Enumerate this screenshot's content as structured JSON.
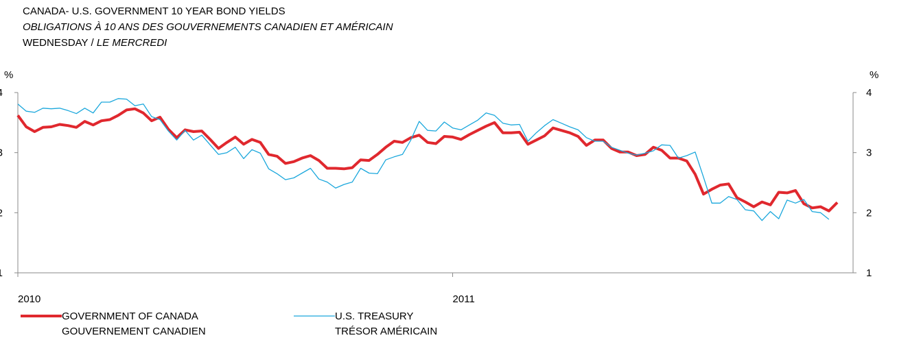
{
  "chart_data": {
    "type": "line",
    "title": "CANADA- U.S. GOVERNMENT 10 YEAR BOND YIELDS",
    "subtitle": "OBLIGATIONS À 10 ANS DES GOUVERNEMENTS CANADIEN ET AMÉRICAIN",
    "day_label": "WEDNESDAY /",
    "day_label_fr": "LE MERCREDI",
    "y_label": "%",
    "y2_label": "%",
    "categories": [
      "2010",
      null,
      null,
      null,
      null,
      null,
      null,
      null,
      null,
      null,
      null,
      null,
      null,
      null,
      null,
      null,
      null,
      null,
      null,
      null,
      null,
      null,
      null,
      null,
      null,
      null,
      null,
      null,
      null,
      null,
      null,
      null,
      null,
      null,
      null,
      null,
      null,
      null,
      null,
      null,
      null,
      null,
      null,
      null,
      null,
      null,
      null,
      null,
      null,
      null,
      null,
      null,
      "2011",
      null,
      null,
      null,
      null,
      null,
      null,
      null,
      null,
      null,
      null,
      null,
      null,
      null,
      null,
      null,
      null,
      null,
      null,
      null,
      null,
      null,
      null,
      null,
      null,
      null,
      null,
      null,
      null,
      null,
      null,
      null,
      null,
      null,
      null,
      null,
      null,
      null,
      null,
      null,
      null,
      null,
      null,
      null,
      null,
      null,
      null
    ],
    "series": [
      {
        "name": "GOVERNMENT OF CANADA",
        "name_fr": "GOUVERNEMENT CANADIEN",
        "color": "#e0282e",
        "width": 4,
        "values": [
          3.62,
          3.43,
          3.35,
          3.42,
          3.43,
          3.47,
          3.45,
          3.42,
          3.52,
          3.46,
          3.53,
          3.55,
          3.62,
          3.71,
          3.73,
          3.66,
          3.53,
          3.59,
          3.39,
          3.25,
          3.38,
          3.35,
          3.36,
          3.22,
          3.07,
          3.17,
          3.26,
          3.14,
          3.22,
          3.17,
          2.97,
          2.94,
          2.82,
          2.85,
          2.91,
          2.95,
          2.87,
          2.74,
          2.74,
          2.73,
          2.75,
          2.88,
          2.87,
          2.97,
          3.09,
          3.19,
          3.17,
          3.25,
          3.29,
          3.17,
          3.15,
          3.27,
          3.26,
          3.22,
          3.3,
          3.37,
          3.44,
          3.5,
          3.33,
          3.33,
          3.34,
          3.14,
          3.21,
          3.28,
          3.41,
          3.37,
          3.33,
          3.27,
          3.12,
          3.21,
          3.21,
          3.07,
          3.01,
          3.01,
          2.95,
          2.97,
          3.09,
          3.04,
          2.91,
          2.91,
          2.86,
          2.64,
          2.31,
          2.39,
          2.46,
          2.48,
          2.25,
          2.18,
          2.1,
          2.18,
          2.13,
          2.34,
          2.33,
          2.37,
          2.15,
          2.08,
          2.1,
          2.03,
          2.17
        ]
      },
      {
        "name": "U.S. TREASURY",
        "name_fr": "TRÉSOR AMÉRICAIN",
        "color": "#1aa7dc",
        "width": 1.3,
        "values": [
          3.81,
          3.69,
          3.67,
          3.74,
          3.73,
          3.74,
          3.7,
          3.65,
          3.74,
          3.66,
          3.84,
          3.84,
          3.9,
          3.89,
          3.78,
          3.81,
          3.6,
          3.55,
          3.36,
          3.21,
          3.37,
          3.21,
          3.29,
          3.13,
          2.97,
          3.0,
          3.09,
          2.9,
          3.05,
          2.99,
          2.73,
          2.65,
          2.55,
          2.58,
          2.66,
          2.74,
          2.56,
          2.51,
          2.41,
          2.47,
          2.51,
          2.74,
          2.66,
          2.65,
          2.88,
          2.93,
          2.97,
          3.21,
          3.52,
          3.37,
          3.36,
          3.51,
          3.41,
          3.38,
          3.46,
          3.54,
          3.66,
          3.62,
          3.49,
          3.46,
          3.47,
          3.19,
          3.33,
          3.45,
          3.55,
          3.49,
          3.43,
          3.38,
          3.25,
          3.19,
          3.19,
          3.09,
          3.04,
          2.99,
          2.96,
          2.99,
          3.03,
          3.13,
          3.12,
          2.91,
          2.95,
          3.01,
          2.59,
          2.16,
          2.16,
          2.27,
          2.22,
          2.05,
          2.03,
          1.87,
          2.02,
          1.9,
          2.21,
          2.16,
          2.22,
          2.02,
          2.0,
          1.89,
          null
        ]
      }
    ],
    "ylim": [
      1,
      4
    ],
    "yticks": [
      1,
      2,
      3,
      4
    ],
    "y2lim": [
      1,
      4
    ],
    "y2ticks": [
      1,
      2,
      3,
      4
    ],
    "grid": false
  }
}
